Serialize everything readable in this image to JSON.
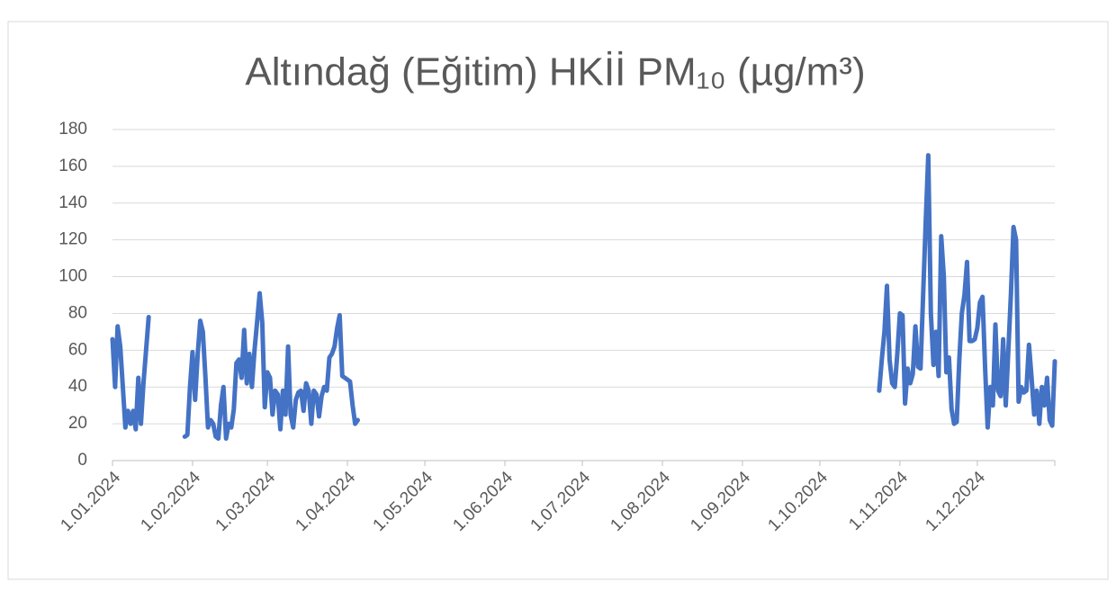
{
  "chart_data": {
    "type": "line",
    "title": "Altındağ (Eğitim) HKİİ PM₁₀ (µg/m³)",
    "color": "#4472c4",
    "grid": true,
    "xlim": [
      "2024-01-01",
      "2024-12-31"
    ],
    "xticks": [
      {
        "value": "2024-01-01",
        "label": "1.01.2024"
      },
      {
        "value": "2024-02-01",
        "label": "1.02.2024"
      },
      {
        "value": "2024-03-01",
        "label": "1.03.2024"
      },
      {
        "value": "2024-04-01",
        "label": "1.04.2024"
      },
      {
        "value": "2024-05-01",
        "label": "1.05.2024"
      },
      {
        "value": "2024-06-01",
        "label": "1.06.2024"
      },
      {
        "value": "2024-07-01",
        "label": "1.07.2024"
      },
      {
        "value": "2024-08-01",
        "label": "1.08.2024"
      },
      {
        "value": "2024-09-01",
        "label": "1.09.2024"
      },
      {
        "value": "2024-10-01",
        "label": "1.10.2024"
      },
      {
        "value": "2024-11-01",
        "label": "1.11.2024"
      },
      {
        "value": "2024-12-01",
        "label": "1.12.2024"
      }
    ],
    "ylim": [
      0,
      180
    ],
    "yticks": [
      0,
      20,
      40,
      60,
      80,
      100,
      120,
      140,
      160,
      180
    ],
    "x": [
      "2024-01-01",
      "2024-01-02",
      "2024-01-03",
      "2024-01-04",
      "2024-01-05",
      "2024-01-06",
      "2024-01-07",
      "2024-01-08",
      "2024-01-09",
      "2024-01-10",
      "2024-01-11",
      "2024-01-12",
      "2024-01-13",
      "2024-01-14",
      "2024-01-15",
      "2024-01-20",
      "2024-01-29",
      "2024-01-30",
      "2024-01-31",
      "2024-02-01",
      "2024-02-02",
      "2024-02-03",
      "2024-02-04",
      "2024-02-05",
      "2024-02-06",
      "2024-02-07",
      "2024-02-08",
      "2024-02-09",
      "2024-02-10",
      "2024-02-11",
      "2024-02-12",
      "2024-02-13",
      "2024-02-14",
      "2024-02-15",
      "2024-02-16",
      "2024-02-17",
      "2024-02-18",
      "2024-02-19",
      "2024-02-20",
      "2024-02-21",
      "2024-02-22",
      "2024-02-23",
      "2024-02-24",
      "2024-02-25",
      "2024-02-26",
      "2024-02-27",
      "2024-02-28",
      "2024-02-29",
      "2024-03-01",
      "2024-03-02",
      "2024-03-03",
      "2024-03-04",
      "2024-03-05",
      "2024-03-06",
      "2024-03-07",
      "2024-03-08",
      "2024-03-09",
      "2024-03-10",
      "2024-03-11",
      "2024-03-12",
      "2024-03-13",
      "2024-03-14",
      "2024-03-15",
      "2024-03-16",
      "2024-03-17",
      "2024-03-18",
      "2024-03-19",
      "2024-03-20",
      "2024-03-21",
      "2024-03-22",
      "2024-03-23",
      "2024-03-24",
      "2024-03-25",
      "2024-03-26",
      "2024-03-27",
      "2024-03-28",
      "2024-03-29",
      "2024-03-30",
      "2024-03-31",
      "2024-04-01",
      "2024-04-02",
      "2024-04-03",
      "2024-04-04",
      "2024-04-05",
      "2024-04-20",
      "2024-10-24",
      "2024-10-25",
      "2024-10-26",
      "2024-10-27",
      "2024-10-28",
      "2024-10-29",
      "2024-10-30",
      "2024-10-31",
      "2024-11-01",
      "2024-11-02",
      "2024-11-03",
      "2024-11-04",
      "2024-11-05",
      "2024-11-06",
      "2024-11-07",
      "2024-11-08",
      "2024-11-09",
      "2024-11-10",
      "2024-11-11",
      "2024-11-12",
      "2024-11-13",
      "2024-11-14",
      "2024-11-15",
      "2024-11-16",
      "2024-11-17",
      "2024-11-18",
      "2024-11-19",
      "2024-11-20",
      "2024-11-21",
      "2024-11-22",
      "2024-11-23",
      "2024-11-24",
      "2024-11-25",
      "2024-11-26",
      "2024-11-27",
      "2024-11-28",
      "2024-11-29",
      "2024-11-30",
      "2024-12-01",
      "2024-12-02",
      "2024-12-03",
      "2024-12-04",
      "2024-12-05",
      "2024-12-06",
      "2024-12-07",
      "2024-12-08",
      "2024-12-09",
      "2024-12-10",
      "2024-12-11",
      "2024-12-12",
      "2024-12-13",
      "2024-12-14",
      "2024-12-15",
      "2024-12-16",
      "2024-12-17",
      "2024-12-18",
      "2024-12-19",
      "2024-12-20",
      "2024-12-21",
      "2024-12-22",
      "2024-12-23",
      "2024-12-24",
      "2024-12-25",
      "2024-12-26",
      "2024-12-27",
      "2024-12-28",
      "2024-12-29",
      "2024-12-30",
      "2024-12-31"
    ],
    "values": [
      66,
      40,
      73,
      62,
      40,
      18,
      27,
      20,
      27,
      17,
      45,
      20,
      42,
      60,
      78,
      null,
      13,
      14,
      40,
      59,
      33,
      58,
      76,
      70,
      45,
      18,
      22,
      20,
      13,
      12,
      30,
      40,
      12,
      20,
      18,
      28,
      53,
      55,
      45,
      71,
      42,
      58,
      40,
      60,
      75,
      91,
      75,
      29,
      48,
      45,
      25,
      38,
      36,
      17,
      38,
      25,
      62,
      25,
      18,
      33,
      37,
      38,
      27,
      42,
      38,
      20,
      38,
      36,
      24,
      35,
      40,
      38,
      56,
      58,
      62,
      72,
      79,
      46,
      45,
      44,
      43,
      30,
      20,
      22,
      null,
      38,
      55,
      70,
      95,
      55,
      42,
      40,
      58,
      80,
      79,
      31,
      50,
      42,
      47,
      73,
      51,
      50,
      90,
      130,
      166,
      80,
      52,
      70,
      46,
      122,
      100,
      48,
      56,
      28,
      20,
      21,
      55,
      80,
      90,
      108,
      65,
      65,
      66,
      72,
      86,
      89,
      50,
      18,
      40,
      30,
      74,
      38,
      35,
      66,
      30,
      60,
      90,
      127,
      120,
      32,
      40,
      37,
      38,
      63,
      45,
      25,
      38,
      20,
      40,
      30,
      45,
      22,
      19,
      54
    ]
  }
}
